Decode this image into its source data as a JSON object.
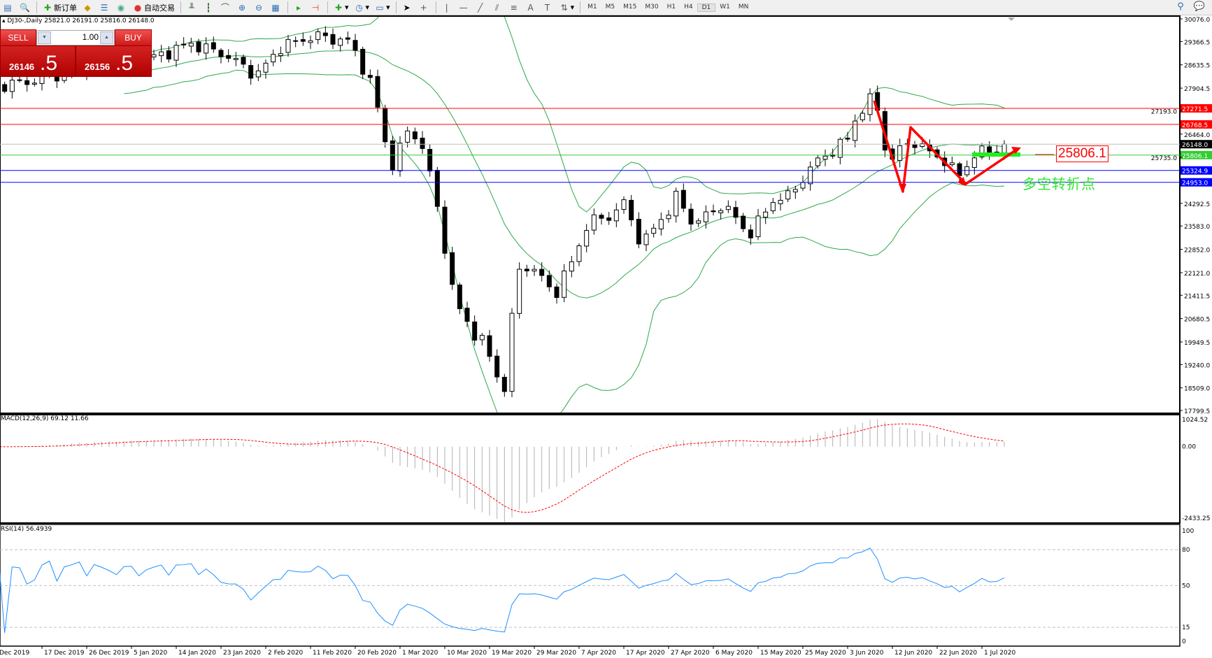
{
  "toolbar": {
    "icons": [
      "new-chart-icon",
      "zoom-chart-icon",
      "new-order-icon",
      "expert-icon",
      "navigator-icon",
      "signal-icon",
      "autotrading-icon",
      "bar-chart-icon",
      "candlestick-icon",
      "line-chart-icon",
      "zoom-in-icon",
      "zoom-out-icon",
      "tile-icon",
      "autoscroll-icon",
      "chart-shift-icon",
      "indicators-icon",
      "periods-icon",
      "templates-icon",
      "cursor-icon",
      "crosshair-icon",
      "vertical-line-icon",
      "horizontal-line-icon",
      "trendline-icon",
      "channel-icon",
      "fibonacci-icon",
      "text-icon",
      "label-icon",
      "arrows-icon"
    ],
    "new_order_label": "新订单",
    "autotrading_label": "自动交易",
    "timeframes": [
      "M1",
      "M5",
      "M15",
      "M30",
      "H1",
      "H4",
      "D1",
      "W1",
      "MN"
    ],
    "active_timeframe": "D1",
    "right_icons": [
      "search-icon",
      "chat-icon"
    ]
  },
  "chart_header": {
    "symbol": "DJ30-,Daily",
    "ohlc": "25821.0 26191.0 25816.0 26148.0"
  },
  "trade_panel": {
    "sell_label": "SELL",
    "buy_label": "BUY",
    "lot": "1.00",
    "sell_price_main": "26146",
    "sell_price_big": ".5",
    "buy_price_main": "26156",
    "buy_price_big": ".5"
  },
  "annotations": {
    "price_box": "25806.1",
    "text": "多空转折点"
  },
  "colors": {
    "bands": "#2ea84a",
    "resistance": "#ff0000",
    "support": "#0000ff",
    "pivot": "#33cc33",
    "current": "#c0c0c0",
    "macd_signal": "#ff0000",
    "macd_hist": "#b0b0b0",
    "rsi": "#1e90ff",
    "arrow": "#ff0000"
  },
  "chart_data": {
    "type": "candlestick",
    "indicators": [
      "Bollinger Bands(20,2)",
      "MACD(12,26,9)",
      "RSI(14)"
    ],
    "price_axis_ticks": [
      "30076.0",
      "29366.5",
      "28635.5",
      "27904.5",
      "27193.0",
      "26464.0",
      "25735.0",
      "24292.5",
      "23583.0",
      "22852.0",
      "22121.0",
      "21411.5",
      "20680.5",
      "19949.5",
      "19240.0",
      "18509.0",
      "17799.5"
    ],
    "price_range": [
      17799.5,
      30076.0
    ],
    "horizontal_lines": [
      {
        "value": "27271.5",
        "color": "#ff0000"
      },
      {
        "value": "26768.5",
        "color": "#ff0000"
      },
      {
        "value": "26148.0",
        "color": "#000000",
        "line": "#c0c0c0"
      },
      {
        "value": "25806.1",
        "color": "#33cc33"
      },
      {
        "value": "25324.9",
        "color": "#0000ff"
      },
      {
        "value": "24953.0",
        "color": "#0000ff"
      }
    ],
    "date_axis": [
      "Dec 2019",
      "17 Dec 2019",
      "26 Dec 2019",
      "5 Jan 2020",
      "14 Jan 2020",
      "23 Jan 2020",
      "2 Feb 2020",
      "11 Feb 2020",
      "20 Feb 2020",
      "1 Mar 2020",
      "10 Mar 2020",
      "19 Mar 2020",
      "29 Mar 2020",
      "7 Apr 2020",
      "17 Apr 2020",
      "27 Apr 2020",
      "6 May 2020",
      "15 May 2020",
      "25 May 2020",
      "3 Jun 2020",
      "12 Jun 2020",
      "22 Jun 2020",
      "1 Jul 2020"
    ],
    "approx_closes": [
      [
        "2019-12-05",
        27900
      ],
      [
        "2019-12-16",
        28150
      ],
      [
        "2019-12-26",
        28600
      ],
      [
        "2020-01-03",
        28700
      ],
      [
        "2020-01-10",
        28900
      ],
      [
        "2020-01-17",
        29300
      ],
      [
        "2020-01-24",
        28950
      ],
      [
        "2020-01-31",
        28300
      ],
      [
        "2020-02-05",
        29200
      ],
      [
        "2020-02-12",
        29550
      ],
      [
        "2020-02-19",
        29350
      ],
      [
        "2020-02-24",
        27900
      ],
      [
        "2020-02-28",
        25400
      ],
      [
        "2020-03-03",
        26700
      ],
      [
        "2020-03-06",
        25900
      ],
      [
        "2020-03-09",
        23800
      ],
      [
        "2020-03-12",
        21200
      ],
      [
        "2020-03-16",
        20200
      ],
      [
        "2020-03-18",
        19900
      ],
      [
        "2020-03-20",
        19100
      ],
      [
        "2020-03-23",
        18300
      ],
      [
        "2020-03-24",
        20700
      ],
      [
        "2020-03-26",
        22500
      ],
      [
        "2020-03-31",
        21900
      ],
      [
        "2020-04-02",
        21400
      ],
      [
        "2020-04-06",
        22600
      ],
      [
        "2020-04-09",
        23700
      ],
      [
        "2020-04-14",
        23900
      ],
      [
        "2020-04-17",
        24300
      ],
      [
        "2020-04-21",
        23000
      ],
      [
        "2020-04-27",
        24100
      ],
      [
        "2020-04-29",
        24600
      ],
      [
        "2020-05-01",
        23700
      ],
      [
        "2020-05-05",
        23900
      ],
      [
        "2020-05-08",
        24300
      ],
      [
        "2020-05-13",
        23300
      ],
      [
        "2020-05-15",
        23700
      ],
      [
        "2020-05-19",
        24500
      ],
      [
        "2020-05-22",
        24500
      ],
      [
        "2020-05-27",
        25500
      ],
      [
        "2020-06-03",
        26300
      ],
      [
        "2020-06-05",
        27100
      ],
      [
        "2020-06-08",
        27600
      ],
      [
        "2020-06-10",
        26900
      ],
      [
        "2020-06-11",
        25200
      ],
      [
        "2020-06-12",
        25700
      ],
      [
        "2020-06-16",
        26300
      ],
      [
        "2020-06-19",
        26000
      ],
      [
        "2020-06-24",
        25600
      ],
      [
        "2020-06-26",
        25100
      ],
      [
        "2020-06-30",
        25900
      ],
      [
        "2020-07-02",
        25900
      ],
      [
        "2020-07-06",
        26148
      ]
    ],
    "macd": {
      "label": "MACD(12,26,9) 69.12 11.66",
      "axis": [
        "1024.52",
        "0.00",
        "-2433.25"
      ],
      "range": [
        -2433.25,
        1024.52
      ]
    },
    "rsi": {
      "label": "RSI(14) 56.4939",
      "axis": [
        "100",
        "80",
        "50",
        "15",
        "0"
      ],
      "levels": [
        80,
        50,
        15
      ]
    }
  }
}
